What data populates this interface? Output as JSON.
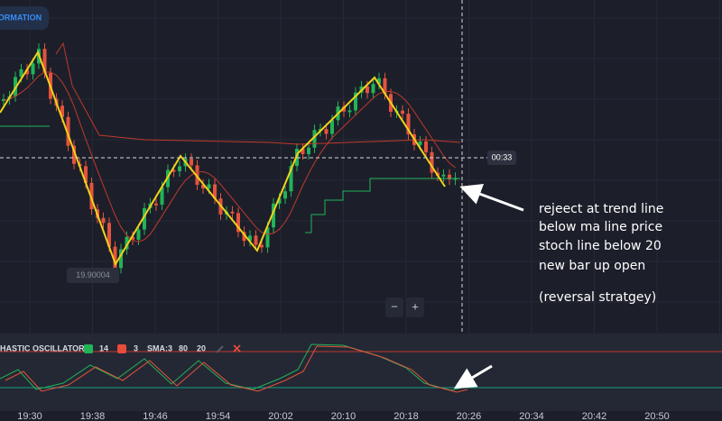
{
  "toolbar": {
    "button": "ORMATION"
  },
  "price_chart": {
    "low_label": "19.90004",
    "timer_label": "00:33",
    "zoom_out": "−",
    "zoom_in": "+"
  },
  "annotation": {
    "lines": [
      "rejeect at trend line",
      "below ma line price",
      "stoch line below 20",
      "new bar up open"
    ],
    "note": "(reversal stratgey)"
  },
  "oscillator": {
    "name": "HASTIC OSCILLATOR",
    "k_period": "14",
    "d_period": "3",
    "sma": "SMA:3",
    "upper": "80",
    "lower": "20"
  },
  "time_axis": [
    "19:30",
    "19:38",
    "19:46",
    "19:54",
    "20:02",
    "20:10",
    "20:18",
    "20:26",
    "20:34",
    "20:42",
    "20:50"
  ]
}
